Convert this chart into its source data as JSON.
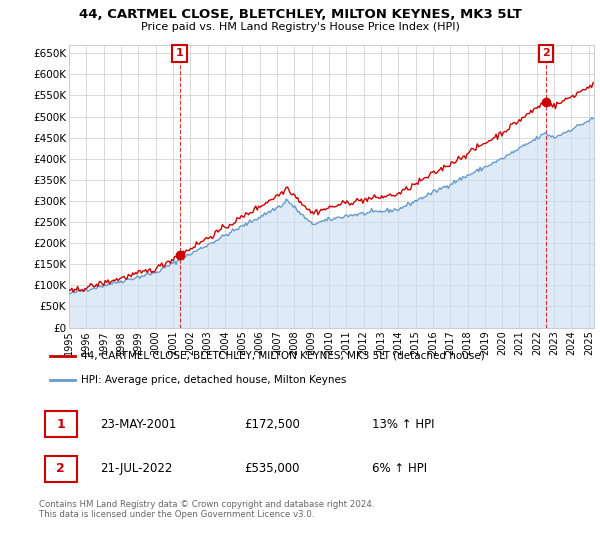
{
  "title": "44, CARTMEL CLOSE, BLETCHLEY, MILTON KEYNES, MK3 5LT",
  "subtitle": "Price paid vs. HM Land Registry's House Price Index (HPI)",
  "ylim": [
    0,
    670000
  ],
  "yticks": [
    0,
    50000,
    100000,
    150000,
    200000,
    250000,
    300000,
    350000,
    400000,
    450000,
    500000,
    550000,
    600000,
    650000
  ],
  "ytick_labels": [
    "£0",
    "£50K",
    "£100K",
    "£150K",
    "£200K",
    "£250K",
    "£300K",
    "£350K",
    "£400K",
    "£450K",
    "£500K",
    "£550K",
    "£600K",
    "£650K"
  ],
  "sale1_year": 2001.38,
  "sale1_price": 172500,
  "sale2_year": 2022.54,
  "sale2_price": 535000,
  "line_color_red": "#cc0000",
  "line_color_blue": "#6699cc",
  "fill_color_blue": "#c8ddf0",
  "grid_color": "#cccccc",
  "annotation_box_color": "#cc0000",
  "legend_label_red": "44, CARTMEL CLOSE, BLETCHLEY, MILTON KEYNES, MK3 5LT (detached house)",
  "legend_label_blue": "HPI: Average price, detached house, Milton Keynes",
  "sale1_date_str": "23-MAY-2001",
  "sale1_price_str": "£172,500",
  "sale1_hpi": "13% ↑ HPI",
  "sale2_date_str": "21-JUL-2022",
  "sale2_price_str": "£535,000",
  "sale2_hpi": "6% ↑ HPI",
  "footer_text": "Contains HM Land Registry data © Crown copyright and database right 2024.\nThis data is licensed under the Open Government Licence v3.0."
}
